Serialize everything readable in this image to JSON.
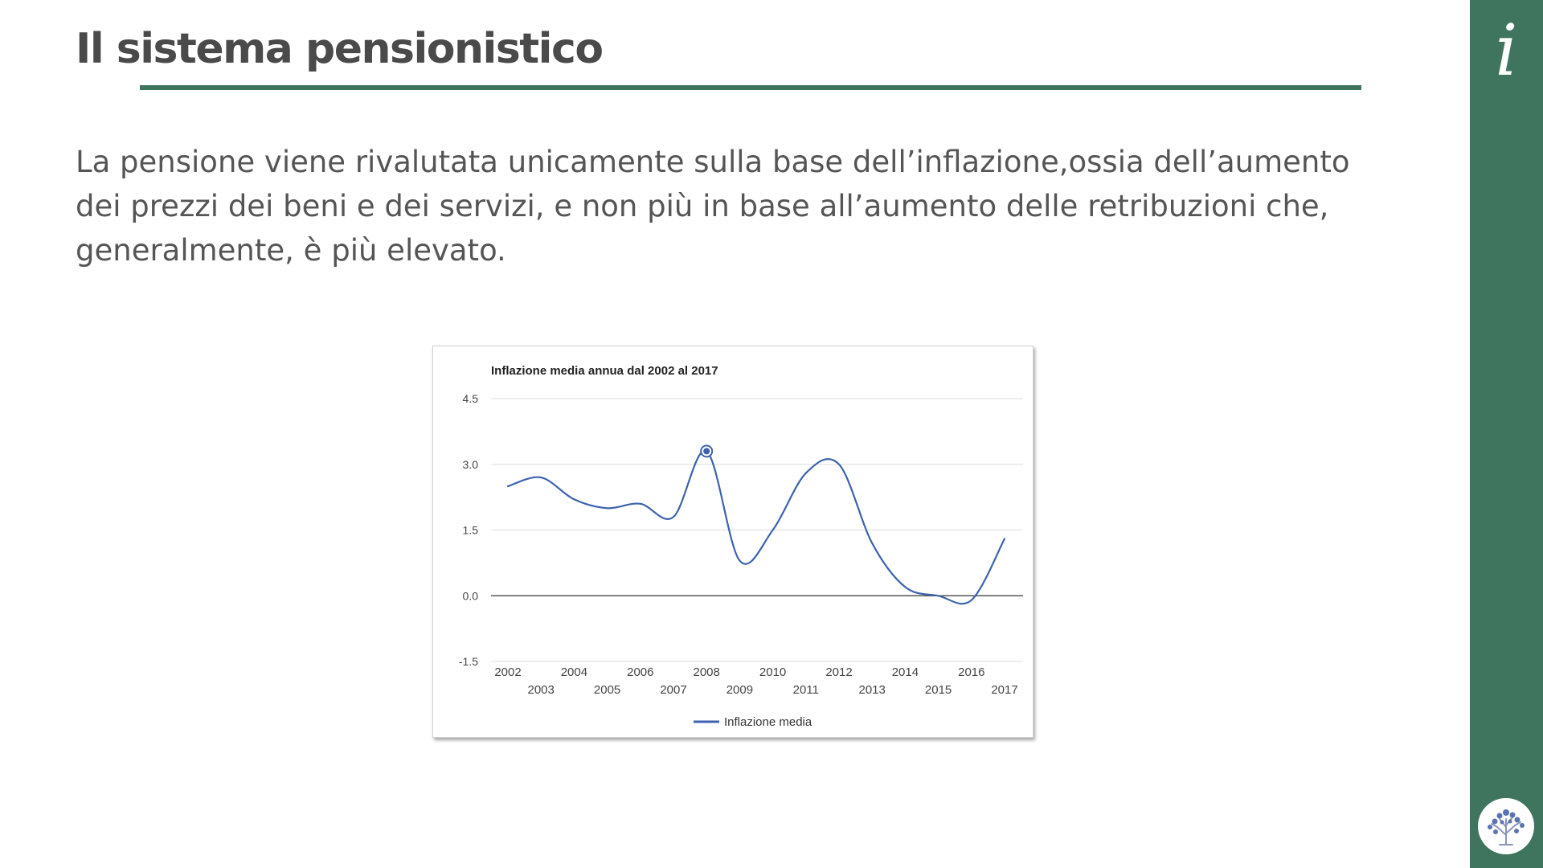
{
  "slide": {
    "title": "Il sistema pensionistico",
    "body": "La pensione viene rivalutata unicamente sulla base dell’inflazione,ossia dell’aumento dei prezzi dei beni e dei servizi, e non più in base all’aumento delle retribuzioni che, generalmente, è più elevato."
  },
  "sidebar": {
    "info_icon_glyph": "i",
    "info_icon": "info-icon",
    "logo_icon": "tree-logo-icon"
  },
  "colors": {
    "accent": "#3f745e",
    "text": "#4a4a4a",
    "series": "#3d62ad"
  },
  "chart_data": {
    "type": "line",
    "title": "Inflazione media annua dal 2002 al 2017",
    "xlabel": "",
    "ylabel": "",
    "x": [
      2002,
      2003,
      2004,
      2005,
      2006,
      2007,
      2008,
      2009,
      2010,
      2011,
      2012,
      2013,
      2014,
      2015,
      2016,
      2017
    ],
    "x_tick_labels": [
      "2002",
      "2003",
      "2004",
      "2005",
      "2006",
      "2007",
      "2008",
      "2009",
      "2010",
      "2011",
      "2012",
      "2013",
      "2014",
      "2015",
      "2016",
      "2017"
    ],
    "y_tick_labels": [
      "4.5",
      "3.0",
      "1.5",
      "0.0",
      "-1.5"
    ],
    "y_ticks": [
      4.5,
      3.0,
      1.5,
      0.0,
      -1.5
    ],
    "ylim": [
      -1.5,
      4.5
    ],
    "grid": true,
    "legend_position": "bottom",
    "highlighted_point": 2008,
    "series": [
      {
        "name": "Inflazione media",
        "color": "#3d62ad",
        "values": [
          2.5,
          2.7,
          2.2,
          2.0,
          2.1,
          1.8,
          3.3,
          0.8,
          1.5,
          2.8,
          3.0,
          1.2,
          0.2,
          0.0,
          -0.1,
          1.3
        ]
      }
    ]
  }
}
